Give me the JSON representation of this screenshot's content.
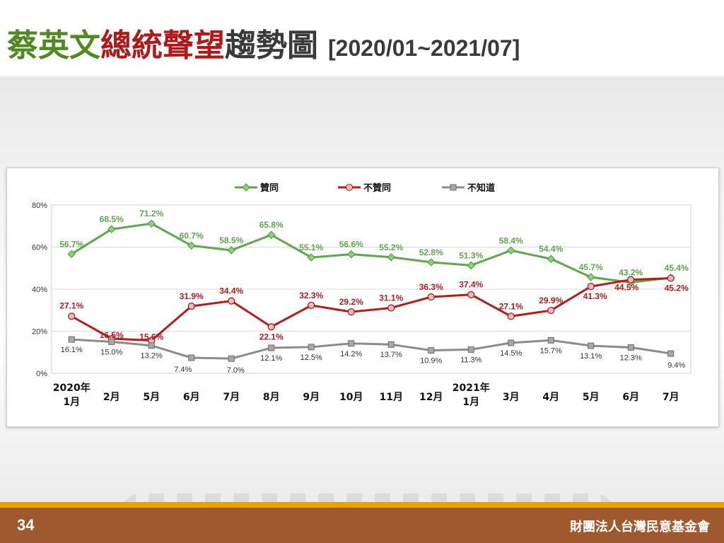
{
  "title": {
    "part1": "蔡英文",
    "part2": "總統聲望",
    "part3": "趨勢圖",
    "range": "[2020/01~2021/07]"
  },
  "footer": {
    "page_number": "34",
    "organization": "財團法人台灣民意基金會"
  },
  "colors": {
    "approve": "#5ca84a",
    "disapprove": "#b51c1c",
    "unknown": "#8c8c8c",
    "footer_bar": "#9e5a2e",
    "footer_accent": "#e8a300"
  },
  "chart_data": {
    "type": "line",
    "legend_position": "top-center",
    "grid": true,
    "ylim": [
      0,
      80
    ],
    "y_ticks": [
      "0%",
      "20%",
      "40%",
      "60%",
      "80%"
    ],
    "categories": [
      {
        "year": "2020年",
        "month": "1月"
      },
      {
        "year": "",
        "month": "2月"
      },
      {
        "year": "",
        "month": "5月"
      },
      {
        "year": "",
        "month": "6月"
      },
      {
        "year": "",
        "month": "7月"
      },
      {
        "year": "",
        "month": "8月"
      },
      {
        "year": "",
        "month": "9月"
      },
      {
        "year": "",
        "month": "10月"
      },
      {
        "year": "",
        "month": "11月"
      },
      {
        "year": "",
        "month": "12月"
      },
      {
        "year": "2021年",
        "month": "1月"
      },
      {
        "year": "",
        "month": "3月"
      },
      {
        "year": "",
        "month": "4月"
      },
      {
        "year": "",
        "month": "5月"
      },
      {
        "year": "",
        "month": "6月"
      },
      {
        "year": "",
        "month": "7月"
      }
    ],
    "series": [
      {
        "name": "贊同",
        "color": "#5ca84a",
        "values": [
          56.7,
          68.5,
          71.2,
          60.7,
          58.5,
          65.8,
          55.1,
          56.6,
          55.2,
          52.8,
          51.3,
          58.4,
          54.4,
          45.7,
          43.2,
          45.4
        ],
        "labels": [
          "56.7%",
          "68.5%",
          "71.2%",
          "60.7%",
          "58.5%",
          "65.8%",
          "55.1%",
          "56.6%",
          "55.2%",
          "52.8%",
          "51.3%",
          "58.4%",
          "54.4%",
          "45.7%",
          "43.2%",
          "45.4%"
        ]
      },
      {
        "name": "不贊同",
        "color": "#b51c1c",
        "values": [
          27.1,
          16.5,
          15.6,
          31.9,
          34.4,
          22.1,
          32.3,
          29.2,
          31.1,
          36.3,
          37.4,
          27.1,
          29.9,
          41.3,
          44.5,
          45.2
        ],
        "labels": [
          "27.1%",
          "16.5%",
          "15.6%",
          "31.9%",
          "34.4%",
          "22.1%",
          "32.3%",
          "29.2%",
          "31.1%",
          "36.3%",
          "37.4%",
          "27.1%",
          "29.9%",
          "41.3%",
          "44.5%",
          "45.2%"
        ]
      },
      {
        "name": "不知道",
        "color": "#8c8c8c",
        "values": [
          16.1,
          15.0,
          13.2,
          7.4,
          7.0,
          12.1,
          12.5,
          14.2,
          13.7,
          10.9,
          11.3,
          14.5,
          15.7,
          13.1,
          12.3,
          9.4
        ],
        "labels": [
          "16.1%",
          "15.0%",
          "13.2%",
          "7.4%",
          "7.0%",
          "12.1%",
          "12.5%",
          "14.2%",
          "13.7%",
          "10.9%",
          "11.3%",
          "14.5%",
          "15.7%",
          "13.1%",
          "12.3%",
          "9.4%"
        ]
      }
    ]
  }
}
